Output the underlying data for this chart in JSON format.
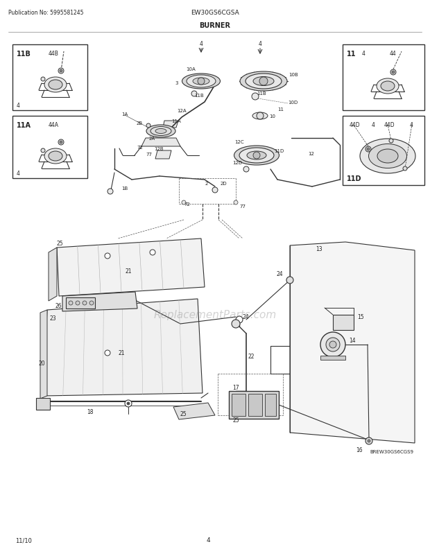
{
  "title": "BURNER",
  "pub_no": "Publication No: 5995581245",
  "model": "EW30GS6CGSA",
  "page": "4",
  "date": "11/10",
  "diagram_id": "BREW30GS6CGS9",
  "bg_color": "#ffffff",
  "fig_width": 6.2,
  "fig_height": 8.03,
  "dpi": 100
}
